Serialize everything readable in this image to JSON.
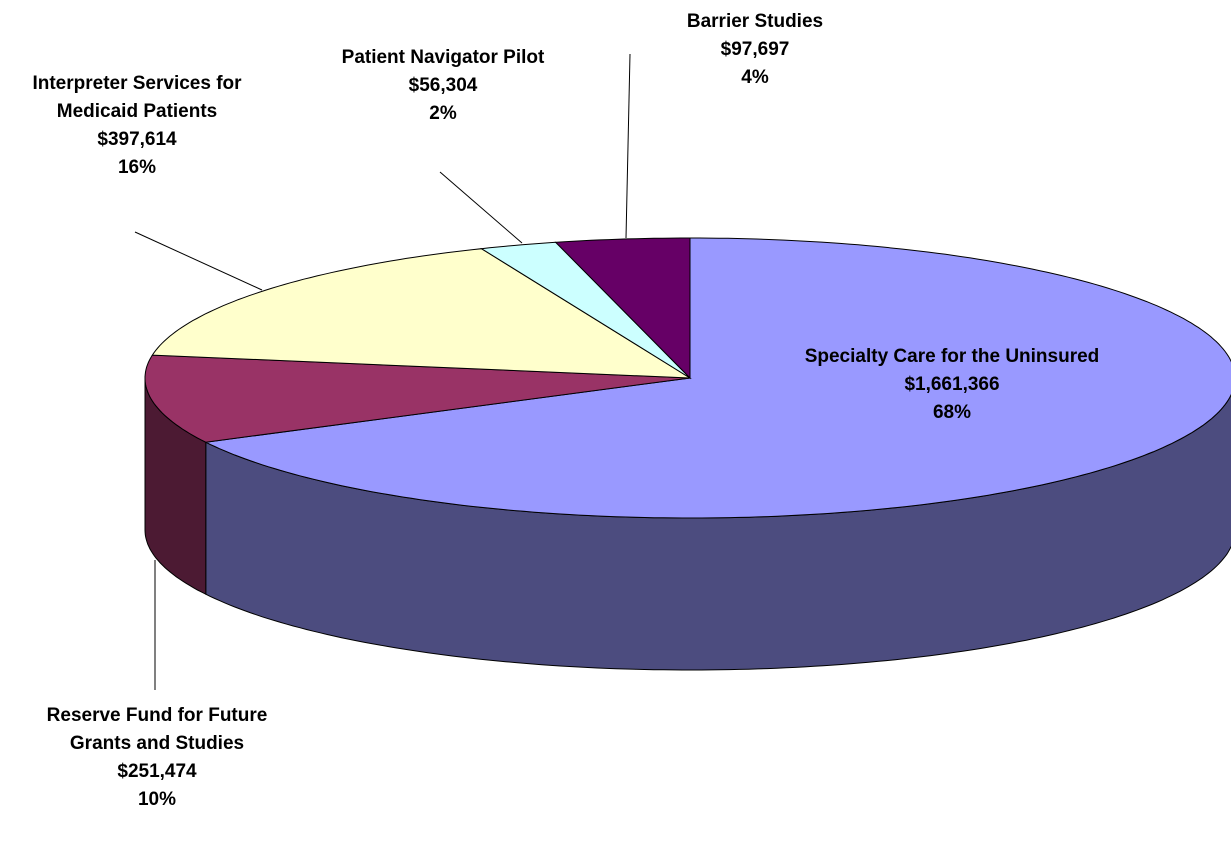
{
  "chart_data": {
    "type": "pie3d",
    "categories": [
      "Specialty Care for the Uninsured",
      "Reserve Fund for Future Grants and Studies",
      "Interpreter Services for Medicaid Patients",
      "Patient Navigator Pilot",
      "Barrier Studies"
    ],
    "values": [
      1661366,
      251474,
      397614,
      56304,
      97697
    ],
    "value_labels": [
      "$1,661,366",
      "$251,474",
      "$397,614",
      "$56,304",
      "$97,697"
    ],
    "percent_labels": [
      "68%",
      "10%",
      "16%",
      "2%",
      "4%"
    ],
    "colors": [
      "#9999ff",
      "#993366",
      "#ffffcc",
      "#ccffff",
      "#660066"
    ],
    "side_colors": [
      "#4c4c7f",
      "#4c1a33",
      "#7f7f66",
      "#667f7f",
      "#330033"
    ]
  }
}
